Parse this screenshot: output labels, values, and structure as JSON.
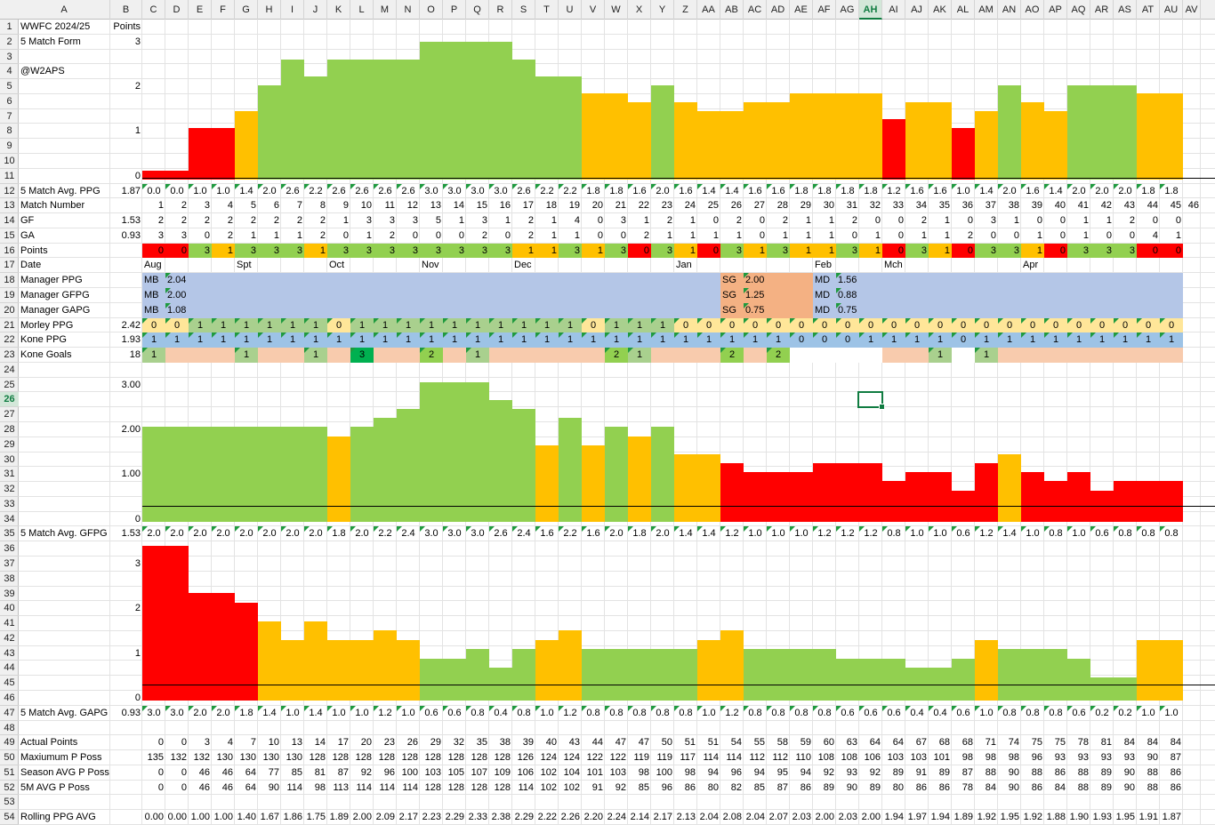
{
  "columns": [
    "A",
    "B",
    "C",
    "D",
    "E",
    "F",
    "G",
    "H",
    "I",
    "J",
    "K",
    "L",
    "M",
    "N",
    "O",
    "P",
    "Q",
    "R",
    "S",
    "T",
    "U",
    "V",
    "W",
    "X",
    "Y",
    "Z",
    "AA",
    "AB",
    "AC",
    "AD",
    "AE",
    "AF",
    "AG",
    "AH",
    "AI",
    "AJ",
    "AK",
    "AL",
    "AM",
    "AN",
    "AO",
    "AP",
    "AQ",
    "AR",
    "AS",
    "AT",
    "AU",
    "AV"
  ],
  "selected_column": "AH",
  "selected_row": "26",
  "rows": [
    "1",
    "2",
    "3",
    "4",
    "5",
    "6",
    "7",
    "8",
    "9",
    "10",
    "11",
    "12",
    "13",
    "14",
    "15",
    "16",
    "17",
    "18",
    "19",
    "20",
    "21",
    "22",
    "23",
    "24",
    "25",
    "26",
    "27",
    "28",
    "29",
    "30",
    "31",
    "32",
    "33",
    "34",
    "35",
    "36",
    "37",
    "38",
    "39",
    "40",
    "41",
    "42",
    "43",
    "44",
    "45",
    "46",
    "47",
    "48",
    "49",
    "50",
    "51",
    "52",
    "53",
    "54"
  ],
  "labels": {
    "title": "WWFC 2024/25",
    "points_header": "Points",
    "form": "5 Match Form",
    "handle": "@W2APS",
    "avg_ppg": "5 Match Avg. PPG",
    "match_number": "Match Number",
    "gf": "GF",
    "ga": "GA",
    "points": "Points",
    "date": "Date",
    "manager_ppg": "Manager PPG",
    "manager_gfpg": "Manager GFPG",
    "manager_gapg": "Manager GAPG",
    "morley_ppg": "Morley PPG",
    "kone_ppg": "Kone PPG",
    "kone_goals": "Kone Goals",
    "avg_gfpg": "5 Match Avg. GFPG",
    "avg_gapg": "5 Match Avg. GAPG",
    "actual_points": "Actual Points",
    "max_p_poss": "Maxiumum P Poss",
    "season_avg": "Season AVG P Poss",
    "fivem_avg": "5M AVG P Poss",
    "rolling_ppg": "Rolling PPG AVG"
  },
  "b_values": {
    "r2": "3",
    "r5": "2",
    "r8": "1",
    "r11": "0",
    "r12": "1.87",
    "r14": "1.53",
    "r15": "0.93",
    "r21": "2.42",
    "r22": "1.93",
    "r23": "18",
    "r25": "3.00",
    "r28": "2.00",
    "r31": "1.00",
    "r34": "0",
    "r35": "1.53",
    "r37": "3",
    "r40": "2",
    "r43": "1",
    "r46": "0",
    "r47": "0.93"
  },
  "colors": {
    "red": "#ff0000",
    "amber": "#ffc000",
    "green": "#92d050",
    "blue": "#b4c6e7",
    "peach": "#f4b183",
    "mgrblue": "#b4c6e7",
    "morley": "#ffe699",
    "kone": "#9dc3e6",
    "kgoal": "#f8cbad",
    "kgreen": "#a9d08e",
    "kdark": "#00b050"
  },
  "ppg5": [
    "0.0",
    "0.0",
    "1.0",
    "1.0",
    "1.4",
    "2.0",
    "2.6",
    "2.2",
    "2.6",
    "2.6",
    "2.6",
    "2.6",
    "3.0",
    "3.0",
    "3.0",
    "3.0",
    "2.6",
    "2.2",
    "2.2",
    "1.8",
    "1.8",
    "1.6",
    "2.0",
    "1.6",
    "1.4",
    "1.4",
    "1.6",
    "1.6",
    "1.8",
    "1.8",
    "1.8",
    "1.8",
    "1.2",
    "1.6",
    "1.6",
    "1.0",
    "1.4",
    "2.0",
    "1.6",
    "1.4",
    "2.0",
    "2.0",
    "2.0",
    "1.8",
    "1.8"
  ],
  "match_numbers": [
    "1",
    "2",
    "3",
    "4",
    "5",
    "6",
    "7",
    "8",
    "9",
    "10",
    "11",
    "12",
    "13",
    "14",
    "15",
    "16",
    "17",
    "18",
    "19",
    "20",
    "21",
    "22",
    "23",
    "24",
    "25",
    "26",
    "27",
    "28",
    "29",
    "30",
    "31",
    "32",
    "33",
    "34",
    "35",
    "36",
    "37",
    "38",
    "39",
    "40",
    "41",
    "42",
    "43",
    "44",
    "45",
    "46"
  ],
  "gf": [
    "2",
    "2",
    "2",
    "2",
    "2",
    "2",
    "2",
    "2",
    "1",
    "3",
    "3",
    "3",
    "5",
    "1",
    "3",
    "1",
    "2",
    "1",
    "4",
    "0",
    "3",
    "1",
    "2",
    "1",
    "0",
    "2",
    "0",
    "2",
    "1",
    "1",
    "2",
    "0",
    "0",
    "2",
    "1",
    "0",
    "3",
    "1",
    "0",
    "0",
    "1",
    "1",
    "2",
    "0",
    "0"
  ],
  "ga": [
    "3",
    "3",
    "0",
    "2",
    "1",
    "1",
    "1",
    "2",
    "0",
    "1",
    "2",
    "0",
    "0",
    "0",
    "2",
    "0",
    "2",
    "1",
    "1",
    "0",
    "0",
    "2",
    "1",
    "1",
    "1",
    "1",
    "0",
    "1",
    "1",
    "1",
    "0",
    "1",
    "0",
    "1",
    "1",
    "2",
    "0",
    "0",
    "1",
    "0",
    "1",
    "0",
    "0",
    "4",
    "1"
  ],
  "points": [
    "0",
    "0",
    "3",
    "1",
    "3",
    "3",
    "3",
    "1",
    "3",
    "3",
    "3",
    "3",
    "3",
    "3",
    "3",
    "3",
    "1",
    "1",
    "3",
    "1",
    "3",
    "0",
    "3",
    "1",
    "0",
    "3",
    "1",
    "3",
    "1",
    "1",
    "3",
    "1",
    "0",
    "3",
    "1",
    "0",
    "3",
    "3",
    "1",
    "0",
    "3",
    "3",
    "3",
    "0",
    "0"
  ],
  "dates": [
    {
      "col": "C",
      "text": "Aug"
    },
    {
      "col": "G",
      "text": "Spt"
    },
    {
      "col": "K",
      "text": "Oct"
    },
    {
      "col": "O",
      "text": "Nov"
    },
    {
      "col": "S",
      "text": "Dec"
    },
    {
      "col": "Z",
      "text": "Jan"
    },
    {
      "col": "AF",
      "text": "Feb"
    },
    {
      "col": "AI",
      "text": "Mch"
    },
    {
      "col": "AO",
      "text": "Apr"
    }
  ],
  "managers": [
    {
      "code": "MB",
      "ppg": "2.04",
      "gfpg": "2.00",
      "gapg": "1.08"
    },
    {
      "code": "SG",
      "ppg": "2.00",
      "gfpg": "1.25",
      "gapg": "0.75"
    },
    {
      "code": "MD",
      "ppg": "1.56",
      "gfpg": "0.88",
      "gapg": "0.75"
    }
  ],
  "morley": [
    "0",
    "0",
    "1",
    "1",
    "1",
    "1",
    "1",
    "1",
    "0",
    "1",
    "1",
    "1",
    "1",
    "1",
    "1",
    "1",
    "1",
    "1",
    "1",
    "0",
    "1",
    "1",
    "1",
    "0",
    "0",
    "0",
    "0",
    "0",
    "0",
    "0",
    "0",
    "0",
    "0",
    "0",
    "0",
    "0",
    "0",
    "0",
    "0",
    "0",
    "0",
    "0",
    "0",
    "0",
    "0"
  ],
  "kone_ppg": [
    "1",
    "1",
    "1",
    "1",
    "1",
    "1",
    "1",
    "1",
    "1",
    "1",
    "1",
    "1",
    "1",
    "1",
    "1",
    "1",
    "1",
    "1",
    "1",
    "1",
    "1",
    "1",
    "1",
    "1",
    "1",
    "1",
    "1",
    "1",
    "0",
    "0",
    "0",
    "1",
    "1",
    "1",
    "1",
    "0",
    "1",
    "1",
    "1",
    "1",
    "1",
    "1",
    "1",
    "1",
    "1"
  ],
  "kone_goals": {
    "C": "1",
    "G": "1",
    "J": "1",
    "L": "3",
    "O": "2",
    "Q": "1",
    "W": "2",
    "X": "1",
    "AB": "2",
    "AD": "2",
    "AK": "1",
    "AM": "1"
  },
  "gfpg5": [
    "2.0",
    "2.0",
    "2.0",
    "2.0",
    "2.0",
    "2.0",
    "2.0",
    "2.0",
    "1.8",
    "2.0",
    "2.2",
    "2.4",
    "3.0",
    "3.0",
    "3.0",
    "2.6",
    "2.4",
    "1.6",
    "2.2",
    "1.6",
    "2.0",
    "1.8",
    "2.0",
    "1.4",
    "1.4",
    "1.2",
    "1.0",
    "1.0",
    "1.0",
    "1.2",
    "1.2",
    "1.2",
    "0.8",
    "1.0",
    "1.0",
    "0.6",
    "1.2",
    "1.4",
    "1.0",
    "0.8",
    "1.0",
    "0.6",
    "0.8",
    "0.8",
    "0.8"
  ],
  "gapg5": [
    "3.0",
    "3.0",
    "2.0",
    "2.0",
    "1.8",
    "1.4",
    "1.0",
    "1.4",
    "1.0",
    "1.0",
    "1.2",
    "1.0",
    "0.6",
    "0.6",
    "0.8",
    "0.4",
    "0.8",
    "1.0",
    "1.2",
    "0.8",
    "0.8",
    "0.8",
    "0.8",
    "0.8",
    "1.0",
    "1.2",
    "0.8",
    "0.8",
    "0.8",
    "0.8",
    "0.6",
    "0.6",
    "0.6",
    "0.4",
    "0.4",
    "0.6",
    "1.0",
    "0.8",
    "0.8",
    "0.8",
    "0.6",
    "0.2",
    "0.2",
    "1.0",
    "1.0"
  ],
  "actual_points": [
    "0",
    "0",
    "3",
    "4",
    "7",
    "10",
    "13",
    "14",
    "17",
    "20",
    "23",
    "26",
    "29",
    "32",
    "35",
    "38",
    "39",
    "40",
    "43",
    "44",
    "47",
    "47",
    "50",
    "51",
    "51",
    "54",
    "55",
    "58",
    "59",
    "60",
    "63",
    "64",
    "64",
    "67",
    "68",
    "68",
    "71",
    "74",
    "75",
    "75",
    "78",
    "81",
    "84",
    "84",
    "84"
  ],
  "max_p_poss": [
    "135",
    "132",
    "132",
    "130",
    "130",
    "130",
    "130",
    "128",
    "128",
    "128",
    "128",
    "128",
    "128",
    "128",
    "128",
    "128",
    "126",
    "124",
    "124",
    "122",
    "122",
    "119",
    "119",
    "117",
    "114",
    "114",
    "112",
    "112",
    "110",
    "108",
    "108",
    "106",
    "103",
    "103",
    "101",
    "98",
    "98",
    "98",
    "96",
    "93",
    "93",
    "93",
    "93",
    "90",
    "87"
  ],
  "season_avg_p": [
    "0",
    "0",
    "46",
    "46",
    "64",
    "77",
    "85",
    "81",
    "87",
    "92",
    "96",
    "100",
    "103",
    "105",
    "107",
    "109",
    "106",
    "102",
    "104",
    "101",
    "103",
    "98",
    "100",
    "98",
    "94",
    "96",
    "94",
    "95",
    "94",
    "92",
    "93",
    "92",
    "89",
    "91",
    "89",
    "87",
    "88",
    "90",
    "88",
    "86",
    "88",
    "89",
    "90",
    "88",
    "86"
  ],
  "fivem_avg_p": [
    "0",
    "0",
    "46",
    "46",
    "64",
    "90",
    "114",
    "98",
    "113",
    "114",
    "114",
    "114",
    "128",
    "128",
    "128",
    "128",
    "114",
    "102",
    "102",
    "91",
    "92",
    "85",
    "96",
    "86",
    "80",
    "82",
    "85",
    "87",
    "86",
    "89",
    "90",
    "89",
    "80",
    "86",
    "86",
    "78",
    "84",
    "90",
    "86",
    "84",
    "88",
    "89",
    "90",
    "88",
    "86"
  ],
  "rolling_ppg": [
    "0.00",
    "0.00",
    "1.00",
    "1.00",
    "1.40",
    "1.67",
    "1.86",
    "1.75",
    "1.89",
    "2.00",
    "2.09",
    "2.17",
    "2.23",
    "2.29",
    "2.33",
    "2.38",
    "2.29",
    "2.22",
    "2.26",
    "2.20",
    "2.24",
    "2.14",
    "2.17",
    "2.13",
    "2.04",
    "2.08",
    "2.04",
    "2.07",
    "2.03",
    "2.00",
    "2.03",
    "2.00",
    "1.94",
    "1.97",
    "1.94",
    "1.89",
    "1.92",
    "1.95",
    "1.92",
    "1.88",
    "1.90",
    "1.93",
    "1.95",
    "1.91",
    "1.87"
  ]
}
